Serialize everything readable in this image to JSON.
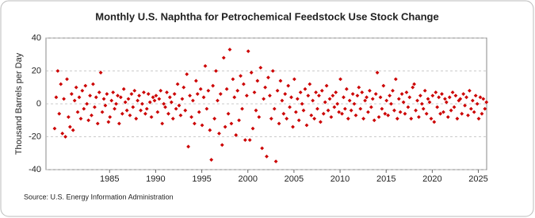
{
  "chart_data": {
    "type": "scatter",
    "title": "Monthly U.S. Naphtha for Petrochemical Feedstock Use Stock Change",
    "y_label": "Thousand Barrels per Day",
    "source": "Source: U.S. Energy Information Administration",
    "color": "#cc0000",
    "xlim": [
      1978.1,
      2025.9
    ],
    "xticks": [
      1985,
      1990,
      1995,
      2000,
      2005,
      2010,
      2015,
      2020,
      2025
    ],
    "ylim": [
      -40,
      40
    ],
    "yticks": [
      -40,
      -20,
      0,
      20,
      40
    ],
    "grid": true,
    "x": [
      1979.04,
      1979.21,
      1979.38,
      1979.54,
      1979.71,
      1979.88,
      1980.04,
      1980.21,
      1980.38,
      1980.54,
      1980.71,
      1980.88,
      1981.04,
      1981.21,
      1981.38,
      1981.54,
      1981.71,
      1981.88,
      1982.04,
      1982.21,
      1982.38,
      1982.54,
      1982.71,
      1982.88,
      1983.04,
      1983.21,
      1983.38,
      1983.54,
      1983.71,
      1983.88,
      1984.04,
      1984.21,
      1984.38,
      1984.54,
      1984.71,
      1984.88,
      1985.04,
      1985.21,
      1985.38,
      1985.54,
      1985.71,
      1985.88,
      1986.04,
      1986.21,
      1986.38,
      1986.54,
      1986.71,
      1986.88,
      1987.04,
      1987.21,
      1987.38,
      1987.54,
      1987.71,
      1987.88,
      1988.04,
      1988.21,
      1988.38,
      1988.54,
      1988.71,
      1988.88,
      1989.04,
      1989.21,
      1989.38,
      1989.54,
      1989.71,
      1989.88,
      1990.04,
      1990.21,
      1990.38,
      1990.54,
      1990.71,
      1990.88,
      1991.04,
      1991.21,
      1991.38,
      1991.54,
      1991.71,
      1991.88,
      1992.04,
      1992.21,
      1992.38,
      1992.54,
      1992.71,
      1992.88,
      1993.04,
      1993.21,
      1993.38,
      1993.54,
      1993.71,
      1993.88,
      1994.04,
      1994.21,
      1994.38,
      1994.54,
      1994.71,
      1994.88,
      1995.04,
      1995.21,
      1995.38,
      1995.54,
      1995.71,
      1995.88,
      1996.04,
      1996.21,
      1996.38,
      1996.54,
      1996.71,
      1996.88,
      1997.04,
      1997.21,
      1997.38,
      1997.54,
      1997.71,
      1997.88,
      1998.04,
      1998.21,
      1998.38,
      1998.54,
      1998.71,
      1998.88,
      1999.04,
      1999.21,
      1999.38,
      1999.54,
      1999.71,
      1999.88,
      2000.04,
      2000.21,
      2000.38,
      2000.54,
      2000.71,
      2000.88,
      2001.04,
      2001.21,
      2001.38,
      2001.54,
      2001.71,
      2001.88,
      2002.04,
      2002.21,
      2002.38,
      2002.54,
      2002.71,
      2002.88,
      2003.04,
      2003.21,
      2003.38,
      2003.54,
      2003.71,
      2003.88,
      2004.04,
      2004.21,
      2004.38,
      2004.54,
      2004.71,
      2004.88,
      2005.04,
      2005.21,
      2005.38,
      2005.54,
      2005.71,
      2005.88,
      2006.04,
      2006.21,
      2006.38,
      2006.54,
      2006.71,
      2006.88,
      2007.04,
      2007.21,
      2007.38,
      2007.54,
      2007.71,
      2007.88,
      2008.04,
      2008.21,
      2008.38,
      2008.54,
      2008.71,
      2008.88,
      2009.04,
      2009.21,
      2009.38,
      2009.54,
      2009.71,
      2009.88,
      2010.04,
      2010.21,
      2010.38,
      2010.54,
      2010.71,
      2010.88,
      2011.04,
      2011.21,
      2011.38,
      2011.54,
      2011.71,
      2011.88,
      2012.04,
      2012.21,
      2012.38,
      2012.54,
      2012.71,
      2012.88,
      2013.04,
      2013.21,
      2013.38,
      2013.54,
      2013.71,
      2013.88,
      2014.04,
      2014.21,
      2014.38,
      2014.54,
      2014.71,
      2014.88,
      2015.04,
      2015.21,
      2015.38,
      2015.54,
      2015.71,
      2015.88,
      2016.04,
      2016.21,
      2016.38,
      2016.54,
      2016.71,
      2016.88,
      2017.04,
      2017.21,
      2017.38,
      2017.54,
      2017.71,
      2017.88,
      2018.04,
      2018.21,
      2018.38,
      2018.54,
      2018.71,
      2018.88,
      2019.04,
      2019.21,
      2019.38,
      2019.54,
      2019.71,
      2019.88,
      2020.04,
      2020.21,
      2020.38,
      2020.54,
      2020.71,
      2020.88,
      2021.04,
      2021.21,
      2021.38,
      2021.54,
      2021.71,
      2021.88,
      2022.04,
      2022.21,
      2022.38,
      2022.54,
      2022.71,
      2022.88,
      2023.04,
      2023.21,
      2023.38,
      2023.54,
      2023.71,
      2023.88,
      2024.04,
      2024.21,
      2024.38,
      2024.54,
      2024.71,
      2024.88,
      2025.04,
      2025.21,
      2025.38,
      2025.54,
      2025.71,
      2025.88
    ],
    "values": [
      -15,
      4,
      20,
      -6,
      12,
      -18,
      3,
      -20,
      15,
      -8,
      -14,
      6,
      -16,
      2,
      10,
      -5,
      4,
      -9,
      8,
      -3,
      11,
      0,
      -10,
      5,
      -7,
      12,
      -2,
      4,
      -12,
      7,
      19,
      -5,
      3,
      -1,
      6,
      -11,
      -8,
      2,
      7,
      -3,
      0,
      5,
      -12,
      4,
      -6,
      9,
      1,
      -4,
      3,
      -7,
      6,
      -2,
      8,
      -9,
      2,
      5,
      -4,
      0,
      7,
      -6,
      -3,
      6,
      1,
      -8,
      4,
      2,
      5,
      -5,
      3,
      8,
      -12,
      0,
      -2,
      7,
      -6,
      4,
      1,
      -9,
      6,
      -3,
      12,
      -1,
      -7,
      3,
      10,
      -4,
      18,
      -26,
      5,
      -8,
      2,
      -12,
      14,
      6,
      -5,
      9,
      -13,
      4,
      23,
      -3,
      8,
      -16,
      -34,
      11,
      -9,
      20,
      2,
      -18,
      6,
      -25,
      28,
      -14,
      9,
      -6,
      33,
      -12,
      15,
      4,
      -19,
      8,
      -10,
      17,
      -3,
      12,
      -22,
      5,
      32,
      -22,
      19,
      -15,
      7,
      -4,
      14,
      -8,
      22,
      -27,
      3,
      10,
      -32,
      16,
      5,
      -9,
      20,
      -3,
      -35,
      8,
      -12,
      14,
      2,
      -6,
      6,
      -9,
      11,
      -2,
      4,
      -14,
      15,
      -5,
      3,
      -10,
      7,
      0,
      -4,
      9,
      -13,
      5,
      12,
      -7,
      2,
      -9,
      7,
      -3,
      5,
      -11,
      8,
      -6,
      1,
      11,
      -4,
      3,
      -8,
      5,
      -2,
      7,
      0,
      -5,
      15,
      -6,
      4,
      -3,
      9,
      -9,
      2,
      -4,
      6,
      0,
      -7,
      5,
      10,
      -3,
      7,
      -9,
      2,
      4,
      -5,
      8,
      -2,
      3,
      -10,
      6,
      19,
      -8,
      4,
      -3,
      11,
      -6,
      2,
      -7,
      5,
      0,
      8,
      -4,
      15,
      -9,
      3,
      -5,
      6,
      1,
      -6,
      7,
      -2,
      4,
      -9,
      10,
      12,
      -4,
      2,
      -8,
      5,
      0,
      -3,
      8,
      -6,
      3,
      1,
      -9,
      5,
      -11,
      7,
      -2,
      4,
      -6,
      6,
      -5,
      3,
      1,
      -8,
      4,
      -4,
      7,
      -2,
      5,
      -9,
      2,
      3,
      -6,
      6,
      -1,
      4,
      -7,
      8,
      -3,
      2,
      -5,
      5,
      0,
      -9,
      4,
      -6,
      3,
      -3,
      1
    ]
  }
}
